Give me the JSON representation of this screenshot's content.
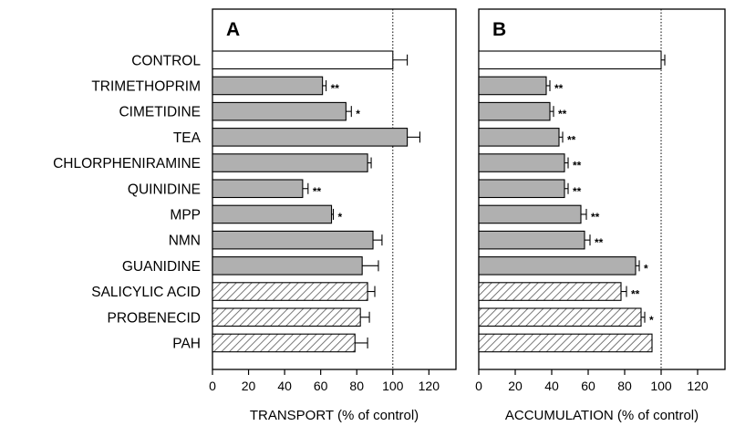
{
  "chart_data": [
    {
      "type": "bar",
      "panel_label": "A",
      "xlabel": "TRANSPORT (% of control)",
      "xlim": [
        0,
        135
      ],
      "xticks": [
        0,
        20,
        40,
        60,
        80,
        100,
        120
      ],
      "reference_line": 100,
      "categories": [
        "CONTROL",
        "TRIMETHOPRIM",
        "CIMETIDINE",
        "TEA",
        "CHLORPHENIRAMINE",
        "QUINIDINE",
        "MPP",
        "NMN",
        "GUANIDINE",
        "SALICYLIC ACID",
        "PROBENECID",
        "PAH"
      ],
      "values": [
        100,
        61,
        74,
        108,
        86,
        50,
        66,
        89,
        83,
        86,
        82,
        79
      ],
      "errors": [
        8,
        2,
        3,
        7,
        2,
        3,
        1,
        5,
        9,
        4,
        5,
        7
      ],
      "significance": [
        "",
        "**",
        "*",
        "",
        "",
        "**",
        "*",
        "",
        "",
        "",
        "",
        ""
      ],
      "fill": [
        "white",
        "gray",
        "gray",
        "gray",
        "gray",
        "gray",
        "gray",
        "gray",
        "gray",
        "hatched",
        "hatched",
        "hatched"
      ]
    },
    {
      "type": "bar",
      "panel_label": "B",
      "xlabel": "ACCUMULATION (% of control)",
      "xlim": [
        0,
        135
      ],
      "xticks": [
        0,
        20,
        40,
        60,
        80,
        100,
        120
      ],
      "reference_line": 100,
      "categories": [
        "CONTROL",
        "TRIMETHOPRIM",
        "CIMETIDINE",
        "TEA",
        "CHLORPHENIRAMINE",
        "QUINIDINE",
        "MPP",
        "NMN",
        "GUANIDINE",
        "SALICYLIC ACID",
        "PROBENECID",
        "PAH"
      ],
      "values": [
        100,
        37,
        39,
        44,
        47,
        47,
        56,
        58,
        86,
        78,
        89,
        95
      ],
      "errors": [
        2,
        2,
        2,
        2,
        2,
        2,
        3,
        3,
        2,
        3,
        2,
        0
      ],
      "significance": [
        "",
        "**",
        "**",
        "**",
        "**",
        "**",
        "**",
        "**",
        "*",
        "**",
        "*",
        ""
      ],
      "fill": [
        "white",
        "gray",
        "gray",
        "gray",
        "gray",
        "gray",
        "gray",
        "gray",
        "gray",
        "hatched",
        "hatched",
        "hatched"
      ]
    }
  ],
  "colors": {
    "bar_gray": "#b0b0b0",
    "bar_white": "#ffffff",
    "hatch": "#555555",
    "stroke": "#000000"
  }
}
